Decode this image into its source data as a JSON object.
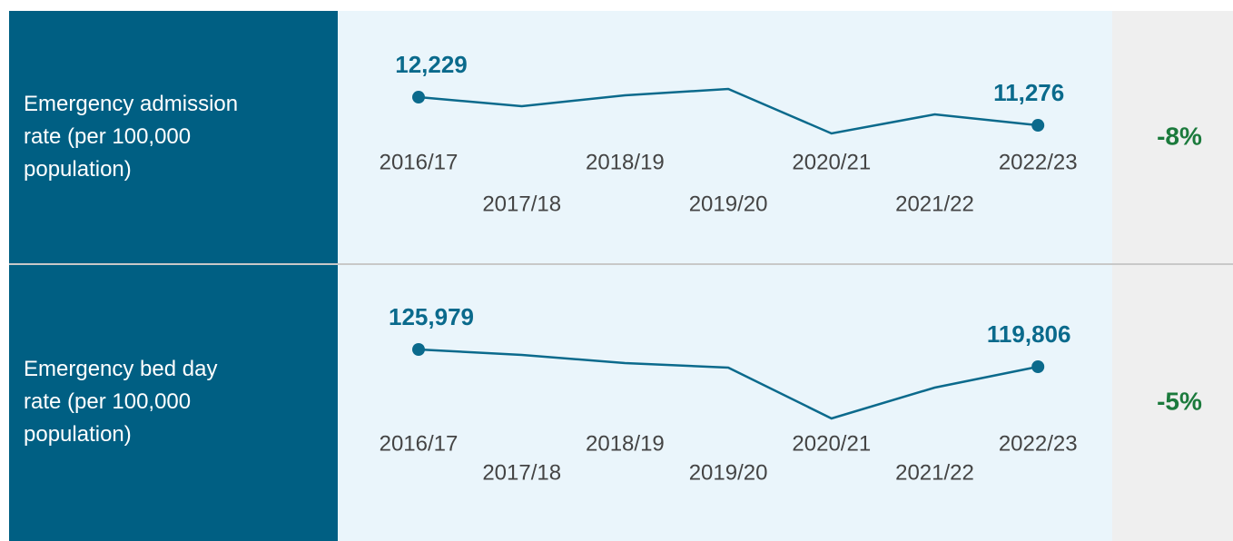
{
  "chart_data": [
    {
      "type": "line",
      "title": "Emergency admission rate (per 100,000 population)",
      "annotation": "-8%",
      "categories": [
        "2016/17",
        "2017/18",
        "2018/19",
        "2019/20",
        "2020/21",
        "2021/22",
        "2022/23"
      ],
      "values": [
        12229,
        11922,
        12290,
        12506,
        11000,
        11645,
        11276
      ],
      "value_labels": [
        "12,229",
        null,
        null,
        null,
        null,
        null,
        "11,276"
      ],
      "color": "#0b6a8c"
    },
    {
      "type": "line",
      "title": "Emergency bed day rate (per 100,000 population)",
      "annotation": "-5%",
      "categories": [
        "2016/17",
        "2017/18",
        "2018/19",
        "2019/20",
        "2020/21",
        "2021/22",
        "2022/23"
      ],
      "values": [
        125979,
        124029,
        121104,
        119479,
        101279,
        112329,
        119806
      ],
      "value_labels": [
        "125,979",
        null,
        null,
        null,
        null,
        null,
        "119,806"
      ],
      "color": "#0b6a8c"
    }
  ]
}
